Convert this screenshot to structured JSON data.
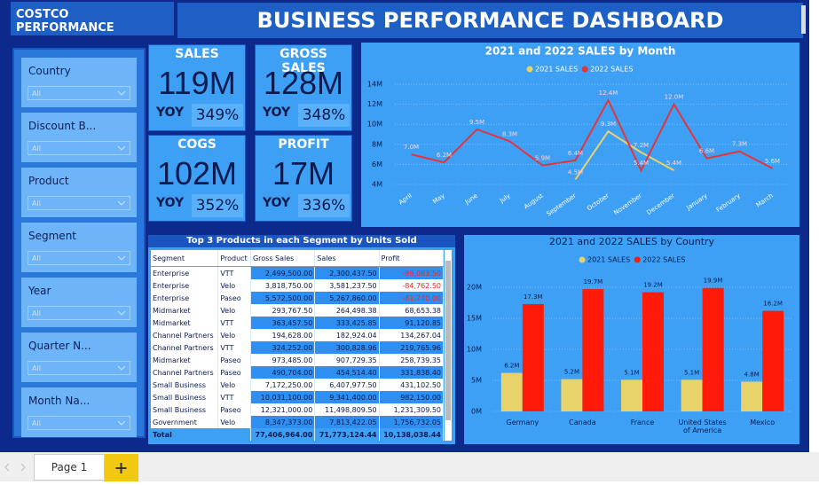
{
  "header": {
    "brand": "COSTCO PERFORMANCE",
    "title": "BUSINESS PERFORMANCE DASHBOARD"
  },
  "filters": [
    {
      "label": "Country",
      "value": "All"
    },
    {
      "label": "Discount B...",
      "value": "All"
    },
    {
      "label": "Product",
      "value": "All"
    },
    {
      "label": "Segment",
      "value": "All"
    },
    {
      "label": "Year",
      "value": "All"
    },
    {
      "label": "Quarter N...",
      "value": "All"
    },
    {
      "label": "Month Na...",
      "value": "All"
    }
  ],
  "kpis": [
    {
      "title": "SALES",
      "value": "119M",
      "yoy_label": "YOY",
      "yoy": "349%"
    },
    {
      "title": "GROSS SALES",
      "value": "128M",
      "yoy_label": "YOY",
      "yoy": "348%"
    },
    {
      "title": "COGS",
      "value": "102M",
      "yoy_label": "YOY",
      "yoy": "352%"
    },
    {
      "title": "PROFIT",
      "value": "17M",
      "yoy_label": "YOY",
      "yoy": "336%"
    }
  ],
  "table": {
    "title": "Top 3 Products in each Segment by Units Sold",
    "columns": [
      "Segment",
      "Product",
      "Gross Sales",
      "Sales",
      "Profit"
    ],
    "rows": [
      [
        "Enterprise",
        "VTT",
        "2,499,500.00",
        "2,300,437.50",
        "-99,083.50"
      ],
      [
        "Enterprise",
        "Velo",
        "3,818,750.00",
        "3,581,237.50",
        "-84,762.50"
      ],
      [
        "Enterprise",
        "Paseo",
        "5,572,500.00",
        "5,267,860.00",
        "-81,740.00"
      ],
      [
        "Midmarket",
        "Velo",
        "293,767.50",
        "264,498.38",
        "68,653.38"
      ],
      [
        "Midmarket",
        "VTT",
        "363,457.50",
        "333,425.85",
        "91,120.85"
      ],
      [
        "Channel Partners",
        "Velo",
        "194,628.00",
        "182,924.04",
        "134,267.04"
      ],
      [
        "Channel Partners",
        "VTT",
        "324,252.00",
        "300,828.96",
        "219,765.96"
      ],
      [
        "Midmarket",
        "Paseo",
        "973,485.00",
        "907,729.35",
        "258,739.35"
      ],
      [
        "Channel Partners",
        "Paseo",
        "490,704.00",
        "454,514.40",
        "331,838.40"
      ],
      [
        "Small Business",
        "Velo",
        "7,172,250.00",
        "6,407,977.50",
        "431,102.50"
      ],
      [
        "Small Business",
        "VTT",
        "10,031,100.00",
        "9,341,400.00",
        "982,150.00"
      ],
      [
        "Small Business",
        "Paseo",
        "12,321,000.00",
        "11,498,809.50",
        "1,231,309.50"
      ],
      [
        "Government",
        "Velo",
        "8,347,373.00",
        "7,813,422.05",
        "1,756,732.05"
      ]
    ],
    "total": {
      "label": "Total",
      "values": [
        "77,406,964.00",
        "71,773,124.44",
        "10,138,038.44"
      ]
    }
  },
  "chart_data": [
    {
      "type": "line",
      "title": "2021 and 2022 SALES by Month",
      "categories": [
        "April",
        "May",
        "June",
        "July",
        "August",
        "September",
        "October",
        "November",
        "December",
        "January",
        "February",
        "March"
      ],
      "series": [
        {
          "name": "2021 SALES",
          "color": "#e8d26a",
          "values": [
            null,
            null,
            null,
            null,
            null,
            4.5,
            9.3,
            7.2,
            5.4,
            null,
            null,
            null
          ],
          "value_labels": [
            null,
            null,
            null,
            null,
            null,
            "4.5M",
            "9.3M",
            "7.2M",
            "5.4M",
            null,
            null,
            null
          ]
        },
        {
          "name": "2022 SALES",
          "color": "#e4343c",
          "values": [
            7.0,
            6.2,
            9.5,
            8.3,
            5.9,
            6.4,
            12.4,
            5.4,
            12.0,
            6.6,
            7.3,
            5.6
          ],
          "value_labels": [
            "7.0M",
            "6.2M",
            "9.5M",
            "8.3M",
            "5.9M",
            "6.4M",
            "12.4M",
            "5.4M",
            "12.0M",
            "6.6M",
            "7.3M",
            "5.6M"
          ]
        }
      ],
      "ylim": [
        4,
        14
      ],
      "yticks": [
        {
          "value": 4,
          "label": "4M"
        },
        {
          "value": 6,
          "label": "6M"
        },
        {
          "value": 8,
          "label": "8M"
        },
        {
          "value": 10,
          "label": "10M"
        },
        {
          "value": 12,
          "label": "12M"
        },
        {
          "value": 14,
          "label": "14M"
        }
      ],
      "grid": true
    },
    {
      "type": "bar",
      "title": "2021 and 2022 SALES by Country",
      "categories": [
        "Germany",
        "Canada",
        "France",
        "United States of America",
        "Mexico"
      ],
      "series": [
        {
          "name": "2021 SALES",
          "color": "#e8d26a",
          "values": [
            6.2,
            5.2,
            5.1,
            5.1,
            4.8
          ],
          "value_labels": [
            "6.2M",
            "5.2M",
            "5.1M",
            "5.1M",
            "4.8M"
          ]
        },
        {
          "name": "2022 SALES",
          "color": "#ff1a0a",
          "values": [
            17.3,
            19.7,
            19.2,
            19.9,
            16.2
          ],
          "value_labels": [
            "17.3M",
            "19.7M",
            "19.2M",
            "19.9M",
            "16.2M"
          ]
        }
      ],
      "ylim": [
        0,
        22
      ],
      "yticks": [
        {
          "value": 0,
          "label": "0M"
        },
        {
          "value": 5,
          "label": "5M"
        },
        {
          "value": 10,
          "label": "10M"
        },
        {
          "value": 15,
          "label": "15M"
        },
        {
          "value": 20,
          "label": "20M"
        }
      ],
      "grid": true
    }
  ],
  "footer": {
    "tab": "Page 1"
  }
}
